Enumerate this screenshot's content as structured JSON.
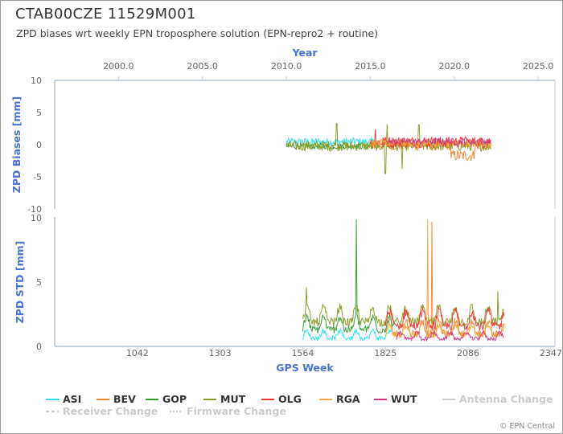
{
  "header": {
    "title": "CTAB00CZE 11529M001",
    "subtitle": "ZPD biases wrt weekly EPN troposphere solution (EPN-repro2 + routine)"
  },
  "footer": {
    "credit": "© EPN Central"
  },
  "chart_data": [
    {
      "type": "line",
      "panel": "top",
      "xlabel": "Year",
      "ylabel": "ZPD Biases [mm]",
      "xlim": [
        1996.2,
        2026.0
      ],
      "xticks": [
        "2000.0",
        "2005.0",
        "2010.0",
        "2015.0",
        "2020.0",
        "2025.0"
      ],
      "ylim": [
        -10,
        10
      ],
      "yticks": [
        "-10",
        "-5",
        "0",
        "5",
        "10"
      ],
      "grid": false,
      "series": [
        {
          "name": "ASI",
          "color": "#22e5ee",
          "x_range": [
            2010.0,
            2015.4
          ],
          "baseline": 0.45,
          "noise": 0.6,
          "spikes": []
        },
        {
          "name": "BEV",
          "color": "#ee8833",
          "x_range": [
            2015.0,
            2022.2
          ],
          "baseline": 0.0,
          "noise": 0.9,
          "segments": [
            {
              "from": 2019.8,
              "to": 2021.2,
              "offset": -1.7
            }
          ],
          "spikes": []
        },
        {
          "name": "GOP",
          "color": "#339933",
          "x_range": [
            2010.0,
            2015.5
          ],
          "baseline": -0.25,
          "noise": 0.45,
          "spikes": []
        },
        {
          "name": "MUT",
          "color": "#889a22",
          "x_range": [
            2010.0,
            2022.2
          ],
          "baseline": -0.2,
          "noise": 0.8,
          "spikes": [
            {
              "x": 2013.0,
              "y": 3.3
            },
            {
              "x": 2015.9,
              "y": -4.5
            },
            {
              "x": 2016.0,
              "y": 3.2
            },
            {
              "x": 2016.9,
              "y": -3.8
            },
            {
              "x": 2017.9,
              "y": 3.1
            }
          ]
        },
        {
          "name": "OLG",
          "color": "#ee3333",
          "x_range": [
            2015.0,
            2022.2
          ],
          "baseline": 0.4,
          "noise": 0.9,
          "spikes": [
            {
              "x": 2015.3,
              "y": 2.4
            }
          ]
        },
        {
          "name": "RGA",
          "color": "#f2a83a",
          "x_range": [
            2015.0,
            2022.2
          ],
          "baseline": 0.2,
          "noise": 0.6,
          "spikes": []
        },
        {
          "name": "WUT",
          "color": "#cc3388",
          "x_range": [
            2016.0,
            2022.2
          ],
          "baseline": 0.5,
          "noise": 0.5,
          "spikes": []
        }
      ]
    },
    {
      "type": "line",
      "panel": "bottom",
      "xlabel": "GPS Week",
      "ylabel": "ZPD STD [mm]",
      "xlim": [
        781,
        2360
      ],
      "xticks": [
        "1042",
        "1303",
        "1564",
        "1825",
        "2086",
        "2347"
      ],
      "ylim": [
        0,
        10
      ],
      "yticks": [
        "0",
        "5",
        "10"
      ],
      "grid": false,
      "series": [
        {
          "name": "ASI",
          "color": "#22e5ee",
          "x_range": [
            1564,
            1845
          ],
          "baseline": 0.65,
          "noise": 0.35,
          "spikes": []
        },
        {
          "name": "BEV",
          "color": "#ee8833",
          "x_range": [
            1825,
            2200
          ],
          "baseline": 1.0,
          "noise": 0.6,
          "spikes": [
            {
              "x": 1972,
              "y": 9.7
            }
          ]
        },
        {
          "name": "GOP",
          "color": "#339933",
          "x_range": [
            1564,
            1850
          ],
          "baseline": 1.3,
          "noise": 0.6,
          "spikes": [
            {
              "x": 1733,
              "y": 9.9
            }
          ]
        },
        {
          "name": "MUT",
          "color": "#889a22",
          "x_range": [
            1564,
            2200
          ],
          "baseline": 1.9,
          "noise": 0.7,
          "spikes": [
            {
              "x": 1575,
              "y": 4.6
            },
            {
              "x": 2180,
              "y": 4.3
            }
          ]
        },
        {
          "name": "OLG",
          "color": "#ee3333",
          "x_range": [
            1825,
            2200
          ],
          "baseline": 1.6,
          "noise": 0.7,
          "spikes": []
        },
        {
          "name": "RGA",
          "color": "#f2a83a",
          "x_range": [
            1825,
            2200
          ],
          "baseline": 0.9,
          "noise": 0.45,
          "spikes": [
            {
              "x": 1958,
              "y": 9.9
            }
          ]
        },
        {
          "name": "WUT",
          "color": "#cc3388",
          "x_range": [
            1860,
            2200
          ],
          "baseline": 0.6,
          "noise": 0.3,
          "spikes": []
        }
      ]
    }
  ],
  "legend": {
    "items": [
      {
        "label": "ASI",
        "color": "#22e5ee",
        "style": "solid",
        "active": true
      },
      {
        "label": "BEV",
        "color": "#ee8833",
        "style": "solid",
        "active": true
      },
      {
        "label": "GOP",
        "color": "#339933",
        "style": "solid",
        "active": true
      },
      {
        "label": "MUT",
        "color": "#889a22",
        "style": "solid",
        "active": true
      },
      {
        "label": "OLG",
        "color": "#ee3333",
        "style": "solid",
        "active": true
      },
      {
        "label": "RGA",
        "color": "#f2a83a",
        "style": "solid",
        "active": true
      },
      {
        "label": "WUT",
        "color": "#cc3388",
        "style": "solid",
        "active": true
      },
      {
        "label": "Antenna Change",
        "color": "#cccccc",
        "style": "solid",
        "active": false
      },
      {
        "label": "Receiver Change",
        "color": "#cccccc",
        "style": "dashed",
        "active": false
      },
      {
        "label": "Firmware Change",
        "color": "#cccccc",
        "style": "dotted",
        "active": false
      }
    ]
  },
  "colors": {
    "axis_label": "#4a72d4",
    "axis_line": "#c6d2df",
    "tick_text": "#666666"
  }
}
